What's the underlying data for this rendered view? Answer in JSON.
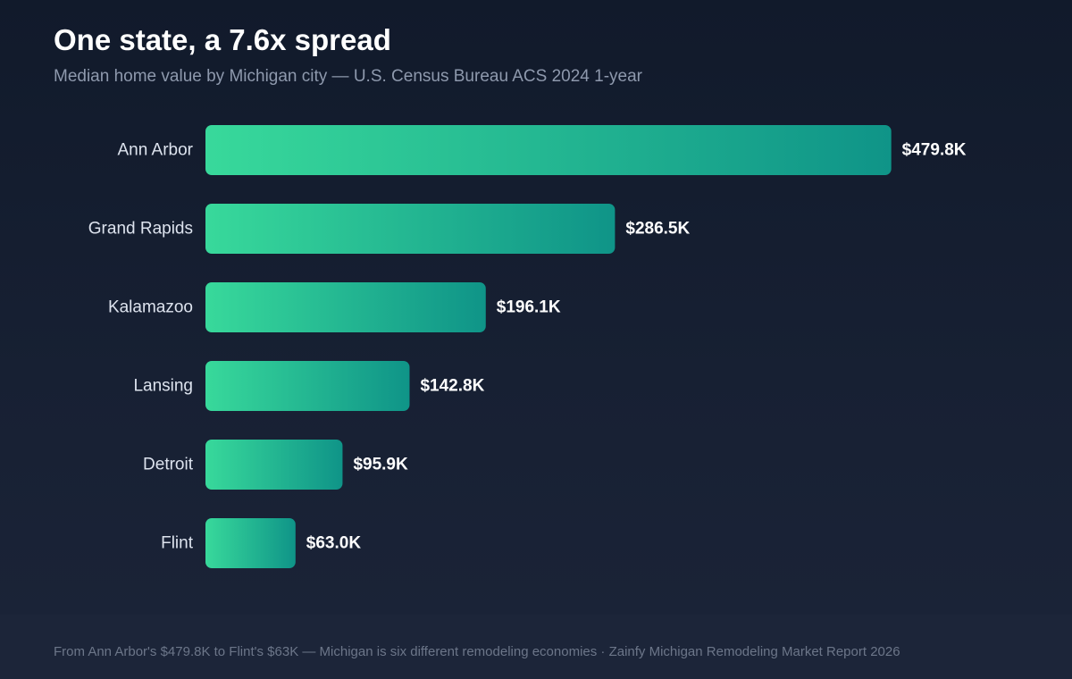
{
  "header": {
    "title": "One state, a 7.6x spread",
    "subtitle": "Median home value by Michigan city — U.S. Census Bureau ACS 2024 1-year"
  },
  "chart_data": {
    "type": "bar",
    "orientation": "horizontal",
    "categories": [
      "Ann Arbor",
      "Grand Rapids",
      "Kalamazoo",
      "Lansing",
      "Detroit",
      "Flint"
    ],
    "values": [
      479.8,
      286.5,
      196.1,
      142.8,
      95.9,
      63.0
    ],
    "value_labels": [
      "$479.8K",
      "$286.5K",
      "$196.1K",
      "$142.8K",
      "$95.9K",
      "$63.0K"
    ],
    "title": "One state, a 7.6x spread",
    "subtitle": "Median home value by Michigan city — U.S. Census Bureau ACS 2024 1-year",
    "xlabel": "",
    "ylabel": "",
    "grid": false,
    "legend": "none",
    "colors": {
      "bar_start": "#38d99b",
      "bar_end": "#0f9488",
      "category_label": "#dde3ee",
      "value_label": "#ffffff"
    }
  },
  "footer": {
    "text": "From Ann Arbor's $479.8K to Flint's $63K — Michigan is six different remodeling economies · Zainfy Michigan Remodeling Market Report 2026"
  }
}
